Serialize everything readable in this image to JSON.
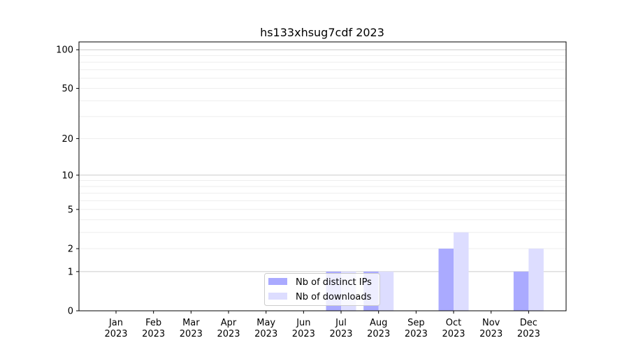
{
  "chart_data": {
    "type": "bar",
    "title": "hs133xhsug7cdf 2023",
    "xlabel": "",
    "ylabel": "",
    "y_scale": "log(1+y)",
    "ylim": [
      0,
      115
    ],
    "y_ticks": [
      0,
      1,
      2,
      5,
      10,
      20,
      50,
      100
    ],
    "grid": true,
    "legend_position": "lower-center",
    "categories": [
      "Jan\n2023",
      "Feb\n2023",
      "Mar\n2023",
      "Apr\n2023",
      "May\n2023",
      "Jun\n2023",
      "Jul\n2023",
      "Aug\n2023",
      "Sep\n2023",
      "Oct\n2023",
      "Nov\n2023",
      "Dec\n2023"
    ],
    "series": [
      {
        "name": "Nb of distinct IPs",
        "color": "#aaaaff",
        "values": [
          0,
          0,
          0,
          0,
          0,
          0,
          1,
          1,
          0,
          2,
          0,
          1
        ]
      },
      {
        "name": "Nb of downloads",
        "color": "#ddddff",
        "values": [
          0,
          0,
          0,
          0,
          0,
          0,
          1,
          1,
          0,
          3,
          0,
          2
        ]
      }
    ]
  }
}
